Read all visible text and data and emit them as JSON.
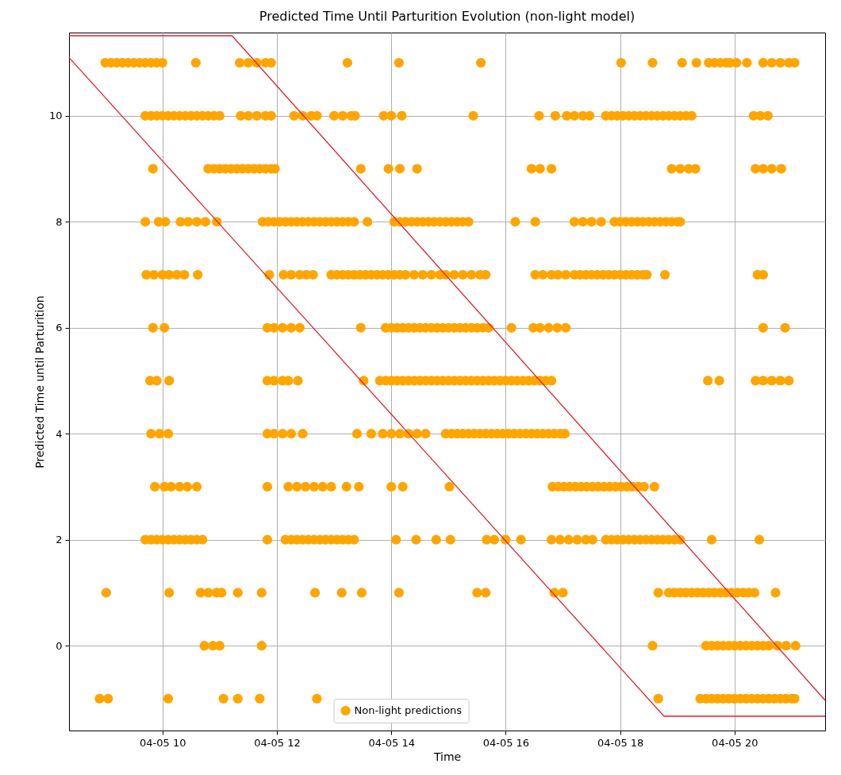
{
  "chart_data": {
    "type": "scatter",
    "title": "Predicted Time Until Parturition Evolution  (non-light model)",
    "xlabel": "Time",
    "ylabel": "Predicted Time until Parturition",
    "xlim": [
      "--04-05T08:22",
      "--04-05T21:35"
    ],
    "ylim": [
      -1.6,
      11.57
    ],
    "xticks": [
      {
        "value": "--04-05T10:00",
        "label": "04-05 10"
      },
      {
        "value": "--04-05T12:00",
        "label": "04-05 12"
      },
      {
        "value": "--04-05T14:00",
        "label": "04-05 14"
      },
      {
        "value": "--04-05T16:00",
        "label": "04-05 16"
      },
      {
        "value": "--04-05T18:00",
        "label": "04-05 18"
      },
      {
        "value": "--04-05T20:00",
        "label": "04-05 20"
      }
    ],
    "yticks": [
      0,
      2,
      4,
      6,
      8,
      10
    ],
    "grid": true,
    "legend": "bottom",
    "marker": "circle",
    "series": [
      {
        "name": "Non-light predictions",
        "color": "#ffa500",
        "x": [
          "--04-05T09:00",
          "--04-05T09:06",
          "--04-05T09:12",
          "--04-05T09:18",
          "--04-05T09:24",
          "--04-05T09:30",
          "--04-05T09:36",
          "--04-05T09:42",
          "--04-05T09:48",
          "--04-05T09:54",
          "--04-05T10:00",
          "--04-05T10:35",
          "--04-05T11:21",
          "--04-05T11:30",
          "--04-05T11:39",
          "--04-05T11:48",
          "--04-05T11:54",
          "--04-05T13:14",
          "--04-05T14:08",
          "--04-05T15:34",
          "--04-05T18:01",
          "--04-05T18:34",
          "--04-05T19:05",
          "--04-05T19:20",
          "--04-05T19:33",
          "--04-05T19:39",
          "--04-05T19:45",
          "--04-05T19:51",
          "--04-05T19:55",
          "--04-05T20:02",
          "--04-05T20:13",
          "--04-05T20:30",
          "--04-05T20:39",
          "--04-05T20:48",
          "--04-05T20:57",
          "--04-05T21:03",
          "--04-05T09:42",
          "--04-05T09:48",
          "--04-05T09:54",
          "--04-05T10:00",
          "--04-05T10:06",
          "--04-05T10:12",
          "--04-05T10:18",
          "--04-05T10:24",
          "--04-05T10:30",
          "--04-05T10:36",
          "--04-05T10:42",
          "--04-05T10:48",
          "--04-05T10:54",
          "--04-05T11:00",
          "--04-05T11:22",
          "--04-05T11:30",
          "--04-05T11:39",
          "--04-05T11:48",
          "--04-05T11:54",
          "--04-05T12:18",
          "--04-05T12:27",
          "--04-05T12:36",
          "--04-05T12:42",
          "--04-05T13:00",
          "--04-05T13:09",
          "--04-05T13:18",
          "--04-05T13:22",
          "--04-05T13:52",
          "--04-05T14:00",
          "--04-05T14:11",
          "--04-05T15:26",
          "--04-05T16:35",
          "--04-05T16:52",
          "--04-05T17:04",
          "--04-05T17:12",
          "--04-05T17:21",
          "--04-05T17:28",
          "--04-05T17:45",
          "--04-05T17:51",
          "--04-05T17:57",
          "--04-05T18:03",
          "--04-05T18:09",
          "--04-05T18:15",
          "--04-05T18:21",
          "--04-05T18:27",
          "--04-05T18:33",
          "--04-05T18:39",
          "--04-05T18:45",
          "--04-05T18:51",
          "--04-05T18:57",
          "--04-05T19:03",
          "--04-05T19:09",
          "--04-05T19:15",
          "--04-05T20:20",
          "--04-05T20:27",
          "--04-05T20:35",
          "--04-05T09:50",
          "--04-05T10:48",
          "--04-05T10:54",
          "--04-05T11:00",
          "--04-05T11:06",
          "--04-05T11:12",
          "--04-05T11:18",
          "--04-05T11:24",
          "--04-05T11:30",
          "--04-05T11:36",
          "--04-05T11:42",
          "--04-05T11:48",
          "--04-05T11:54",
          "--04-05T11:58",
          "--04-05T13:28",
          "--04-05T13:57",
          "--04-05T14:09",
          "--04-05T14:27",
          "--04-05T16:27",
          "--04-05T16:36",
          "--04-05T16:48",
          "--04-05T18:54",
          "--04-05T19:03",
          "--04-05T19:12",
          "--04-05T19:19",
          "--04-05T20:22",
          "--04-05T20:30",
          "--04-05T20:39",
          "--04-05T20:49",
          "--04-05T09:42",
          "--04-05T09:56",
          "--04-05T10:03",
          "--04-05T10:19",
          "--04-05T10:27",
          "--04-05T10:36",
          "--04-05T10:45",
          "--04-05T10:57",
          "--04-05T11:45",
          "--04-05T11:51",
          "--04-05T11:57",
          "--04-05T12:03",
          "--04-05T12:09",
          "--04-05T12:15",
          "--04-05T12:21",
          "--04-05T12:27",
          "--04-05T12:33",
          "--04-05T12:39",
          "--04-05T12:45",
          "--04-05T12:51",
          "--04-05T12:57",
          "--04-05T13:03",
          "--04-05T13:09",
          "--04-05T13:15",
          "--04-05T13:21",
          "--04-05T13:35",
          "--04-05T14:03",
          "--04-05T14:09",
          "--04-05T14:15",
          "--04-05T14:21",
          "--04-05T14:27",
          "--04-05T14:33",
          "--04-05T14:39",
          "--04-05T14:45",
          "--04-05T14:51",
          "--04-05T14:57",
          "--04-05T15:03",
          "--04-05T15:09",
          "--04-05T15:15",
          "--04-05T15:21",
          "--04-05T16:10",
          "--04-05T16:31",
          "--04-05T17:12",
          "--04-05T17:21",
          "--04-05T17:30",
          "--04-05T17:40",
          "--04-05T17:54",
          "--04-05T18:00",
          "--04-05T18:06",
          "--04-05T18:12",
          "--04-05T18:18",
          "--04-05T18:24",
          "--04-05T18:30",
          "--04-05T18:36",
          "--04-05T18:42",
          "--04-05T18:48",
          "--04-05T18:54",
          "--04-05T19:00",
          "--04-05T19:03",
          "--04-05T09:43",
          "--04-05T09:51",
          "--04-05T10:00",
          "--04-05T10:07",
          "--04-05T10:15",
          "--04-05T10:23",
          "--04-05T10:37",
          "--04-05T11:52",
          "--04-05T12:07",
          "--04-05T12:15",
          "--04-05T12:24",
          "--04-05T12:31",
          "--04-05T12:38",
          "--04-05T12:57",
          "--04-05T13:03",
          "--04-05T13:09",
          "--04-05T13:15",
          "--04-05T13:21",
          "--04-05T13:27",
          "--04-05T13:33",
          "--04-05T13:39",
          "--04-05T13:45",
          "--04-05T13:51",
          "--04-05T13:57",
          "--04-05T14:03",
          "--04-05T14:09",
          "--04-05T14:15",
          "--04-05T14:24",
          "--04-05T14:33",
          "--04-05T14:42",
          "--04-05T14:51",
          "--04-05T14:57",
          "--04-05T15:06",
          "--04-05T15:15",
          "--04-05T15:24",
          "--04-05T15:33",
          "--04-05T15:39",
          "--04-05T16:31",
          "--04-05T16:39",
          "--04-05T16:48",
          "--04-05T16:55",
          "--04-05T17:03",
          "--04-05T17:12",
          "--04-05T17:18",
          "--04-05T17:24",
          "--04-05T17:30",
          "--04-05T17:36",
          "--04-05T17:42",
          "--04-05T17:48",
          "--04-05T17:54",
          "--04-05T18:00",
          "--04-05T18:06",
          "--04-05T18:12",
          "--04-05T18:18",
          "--04-05T18:24",
          "--04-05T18:28",
          "--04-05T18:47",
          "--04-05T20:24",
          "--04-05T20:30",
          "--04-05T09:50",
          "--04-05T10:02",
          "--04-05T11:50",
          "--04-05T11:57",
          "--04-05T12:06",
          "--04-05T12:15",
          "--04-05T12:24",
          "--04-05T13:28",
          "--04-05T13:54",
          "--04-05T14:00",
          "--04-05T14:06",
          "--04-05T14:12",
          "--04-05T14:18",
          "--04-05T14:24",
          "--04-05T14:30",
          "--04-05T14:36",
          "--04-05T14:42",
          "--04-05T14:48",
          "--04-05T14:54",
          "--04-05T15:00",
          "--04-05T15:06",
          "--04-05T15:12",
          "--04-05T15:18",
          "--04-05T15:24",
          "--04-05T15:30",
          "--04-05T15:36",
          "--04-05T15:42",
          "--04-05T16:06",
          "--04-05T16:29",
          "--04-05T16:36",
          "--04-05T16:45",
          "--04-05T16:54",
          "--04-05T17:03",
          "--04-05T20:30",
          "--04-05T20:53",
          "--04-05T09:47",
          "--04-05T09:54",
          "--04-05T10:07",
          "--04-05T11:50",
          "--04-05T11:57",
          "--04-05T12:06",
          "--04-05T12:12",
          "--04-05T12:22",
          "--04-05T13:31",
          "--04-05T13:48",
          "--04-05T13:54",
          "--04-05T14:00",
          "--04-05T14:06",
          "--04-05T14:12",
          "--04-05T14:18",
          "--04-05T14:24",
          "--04-05T14:30",
          "--04-05T14:36",
          "--04-05T14:42",
          "--04-05T14:48",
          "--04-05T14:54",
          "--04-05T15:00",
          "--04-05T15:06",
          "--04-05T15:12",
          "--04-05T15:18",
          "--04-05T15:24",
          "--04-05T15:30",
          "--04-05T15:36",
          "--04-05T15:42",
          "--04-05T15:48",
          "--04-05T15:54",
          "--04-05T16:00",
          "--04-05T16:06",
          "--04-05T16:12",
          "--04-05T16:18",
          "--04-05T16:24",
          "--04-05T16:30",
          "--04-05T16:36",
          "--04-05T16:42",
          "--04-05T16:48",
          "--04-05T19:32",
          "--04-05T19:44",
          "--04-05T20:22",
          "--04-05T20:30",
          "--04-05T20:39",
          "--04-05T20:48",
          "--04-05T20:57",
          "--04-05T09:48",
          "--04-05T09:57",
          "--04-05T10:06",
          "--04-05T11:50",
          "--04-05T11:57",
          "--04-05T12:06",
          "--04-05T12:15",
          "--04-05T12:27",
          "--04-05T13:24",
          "--04-05T13:39",
          "--04-05T13:51",
          "--04-05T14:00",
          "--04-05T14:09",
          "--04-05T14:18",
          "--04-05T14:27",
          "--04-05T14:36",
          "--04-05T14:57",
          "--04-05T15:03",
          "--04-05T15:09",
          "--04-05T15:15",
          "--04-05T15:21",
          "--04-05T15:27",
          "--04-05T15:33",
          "--04-05T15:39",
          "--04-05T15:45",
          "--04-05T15:51",
          "--04-05T15:57",
          "--04-05T16:03",
          "--04-05T16:09",
          "--04-05T16:15",
          "--04-05T16:21",
          "--04-05T16:27",
          "--04-05T16:33",
          "--04-05T16:39",
          "--04-05T16:45",
          "--04-05T16:51",
          "--04-05T16:57",
          "--04-05T17:02",
          "--04-05T09:52",
          "--04-05T10:02",
          "--04-05T10:09",
          "--04-05T10:18",
          "--04-05T10:26",
          "--04-05T10:36",
          "--04-05T11:50",
          "--04-05T12:12",
          "--04-05T12:21",
          "--04-05T12:30",
          "--04-05T12:39",
          "--04-05T12:48",
          "--04-05T12:57",
          "--04-05T13:13",
          "--04-05T13:26",
          "--04-05T14:00",
          "--04-05T14:12",
          "--04-05T15:01",
          "--04-05T16:49",
          "--04-05T16:55",
          "--04-05T17:01",
          "--04-05T17:07",
          "--04-05T17:13",
          "--04-05T17:19",
          "--04-05T17:25",
          "--04-05T17:31",
          "--04-05T17:37",
          "--04-05T17:43",
          "--04-05T17:49",
          "--04-05T17:55",
          "--04-05T18:01",
          "--04-05T18:07",
          "--04-05T18:13",
          "--04-05T18:19",
          "--04-05T18:25",
          "--04-05T18:36",
          "--04-05T09:42",
          "--04-05T09:48",
          "--04-05T09:54",
          "--04-05T10:00",
          "--04-05T10:06",
          "--04-05T10:12",
          "--04-05T10:18",
          "--04-05T10:24",
          "--04-05T10:30",
          "--04-05T10:36",
          "--04-05T10:42",
          "--04-05T11:50",
          "--04-05T12:09",
          "--04-05T12:15",
          "--04-05T12:21",
          "--04-05T12:27",
          "--04-05T12:33",
          "--04-05T12:39",
          "--04-05T12:45",
          "--04-05T12:51",
          "--04-05T12:57",
          "--04-05T13:03",
          "--04-05T13:09",
          "--04-05T13:15",
          "--04-05T13:21",
          "--04-05T14:05",
          "--04-05T14:26",
          "--04-05T14:47",
          "--04-05T15:02",
          "--04-05T15:40",
          "--04-05T15:48",
          "--04-05T16:00",
          "--04-05T16:16",
          "--04-05T16:48",
          "--04-05T16:57",
          "--04-05T17:06",
          "--04-05T17:15",
          "--04-05T17:24",
          "--04-05T17:31",
          "--04-05T17:45",
          "--04-05T17:51",
          "--04-05T17:57",
          "--04-05T18:03",
          "--04-05T18:09",
          "--04-05T18:15",
          "--04-05T18:21",
          "--04-05T18:27",
          "--04-05T18:33",
          "--04-05T18:39",
          "--04-05T18:45",
          "--04-05T18:51",
          "--04-05T18:57",
          "--04-05T19:03",
          "--04-05T19:36",
          "--04-05T20:26",
          "--04-05T09:01",
          "--04-05T10:07",
          "--04-05T10:40",
          "--04-05T10:48",
          "--04-05T10:57",
          "--04-05T11:02",
          "--04-05T11:19",
          "--04-05T11:44",
          "--04-05T12:40",
          "--04-05T13:08",
          "--04-05T13:29",
          "--04-05T14:08",
          "--04-05T15:30",
          "--04-05T15:39",
          "--04-05T16:51",
          "--04-05T17:00",
          "--04-05T18:40",
          "--04-05T18:51",
          "--04-05T18:57",
          "--04-05T19:03",
          "--04-05T19:09",
          "--04-05T19:15",
          "--04-05T19:21",
          "--04-05T19:27",
          "--04-05T19:33",
          "--04-05T19:39",
          "--04-05T19:45",
          "--04-05T19:51",
          "--04-05T19:57",
          "--04-05T20:03",
          "--04-05T20:09",
          "--04-05T20:15",
          "--04-05T20:21",
          "--04-05T20:43",
          "--04-05T10:44",
          "--04-05T10:53",
          "--04-05T11:00",
          "--04-05T11:44",
          "--04-05T18:34",
          "--04-05T19:30",
          "--04-05T19:36",
          "--04-05T19:42",
          "--04-05T19:48",
          "--04-05T19:54",
          "--04-05T20:00",
          "--04-05T20:06",
          "--04-05T20:12",
          "--04-05T20:18",
          "--04-05T20:24",
          "--04-05T20:30",
          "--04-05T20:36",
          "--04-05T20:45",
          "--04-05T20:54",
          "--04-05T21:04",
          "--04-05T08:54",
          "--04-05T09:03",
          "--04-05T10:06",
          "--04-05T11:04",
          "--04-05T11:19",
          "--04-05T11:42",
          "--04-05T12:42",
          "--04-05T18:40",
          "--04-05T19:24",
          "--04-05T19:30",
          "--04-05T19:36",
          "--04-05T19:42",
          "--04-05T19:48",
          "--04-05T19:54",
          "--04-05T20:00",
          "--04-05T20:06",
          "--04-05T20:12",
          "--04-05T20:18",
          "--04-05T20:24",
          "--04-05T20:30",
          "--04-05T20:36",
          "--04-05T20:42",
          "--04-05T20:48",
          "--04-05T20:54",
          "--04-05T21:00",
          "--04-05T21:03"
        ],
        "values": [
          11,
          11,
          11,
          11,
          11,
          11,
          11,
          11,
          11,
          11,
          11,
          11,
          11,
          11,
          11,
          11,
          11,
          11,
          11,
          11,
          11,
          11,
          11,
          11,
          11,
          11,
          11,
          11,
          11,
          11,
          11,
          11,
          11,
          11,
          11,
          11,
          10,
          10,
          10,
          10,
          10,
          10,
          10,
          10,
          10,
          10,
          10,
          10,
          10,
          10,
          10,
          10,
          10,
          10,
          10,
          10,
          10,
          10,
          10,
          10,
          10,
          10,
          10,
          10,
          10,
          10,
          10,
          10,
          10,
          10,
          10,
          10,
          10,
          10,
          10,
          10,
          10,
          10,
          10,
          10,
          10,
          10,
          10,
          10,
          10,
          10,
          10,
          10,
          10,
          10,
          10,
          10,
          9,
          9,
          9,
          9,
          9,
          9,
          9,
          9,
          9,
          9,
          9,
          9,
          9,
          9,
          9,
          9,
          9,
          9,
          9,
          9,
          9,
          9,
          9,
          9,
          9,
          9,
          9,
          9,
          9,
          8,
          8,
          8,
          8,
          8,
          8,
          8,
          8,
          8,
          8,
          8,
          8,
          8,
          8,
          8,
          8,
          8,
          8,
          8,
          8,
          8,
          8,
          8,
          8,
          8,
          8,
          8,
          8,
          8,
          8,
          8,
          8,
          8,
          8,
          8,
          8,
          8,
          8,
          8,
          8,
          8,
          8,
          8,
          8,
          8,
          8,
          8,
          8,
          8,
          8,
          8,
          8,
          8,
          8,
          8,
          8,
          8,
          8,
          8,
          7,
          7,
          7,
          7,
          7,
          7,
          7,
          7,
          7,
          7,
          7,
          7,
          7,
          7,
          7,
          7,
          7,
          7,
          7,
          7,
          7,
          7,
          7,
          7,
          7,
          7,
          7,
          7,
          7,
          7,
          7,
          7,
          7,
          7,
          7,
          7,
          7,
          7,
          7,
          7,
          7,
          7,
          7,
          7,
          7,
          7,
          7,
          7,
          7,
          7,
          7,
          7,
          7,
          7,
          7,
          7,
          7,
          7,
          7,
          6,
          6,
          6,
          6,
          6,
          6,
          6,
          6,
          6,
          6,
          6,
          6,
          6,
          6,
          6,
          6,
          6,
          6,
          6,
          6,
          6,
          6,
          6,
          6,
          6,
          6,
          6,
          6,
          6,
          6,
          6,
          6,
          6,
          6,
          6,
          5,
          5,
          5,
          5,
          5,
          5,
          5,
          5,
          5,
          5,
          5,
          5,
          5,
          5,
          5,
          5,
          5,
          5,
          5,
          5,
          5,
          5,
          5,
          5,
          5,
          5,
          5,
          5,
          5,
          5,
          5,
          5,
          5,
          5,
          5,
          5,
          5,
          5,
          5,
          5,
          5,
          5,
          5,
          5,
          5,
          5,
          5,
          4,
          4,
          4,
          4,
          4,
          4,
          4,
          4,
          4,
          4,
          4,
          4,
          4,
          4,
          4,
          4,
          4,
          4,
          4,
          4,
          4,
          4,
          4,
          4,
          4,
          4,
          4,
          4,
          4,
          4,
          4,
          4,
          4,
          4,
          4,
          4,
          4,
          4,
          3,
          3,
          3,
          3,
          3,
          3,
          3,
          3,
          3,
          3,
          3,
          3,
          3,
          3,
          3,
          3,
          3,
          3,
          3,
          3,
          3,
          3,
          3,
          3,
          3,
          3,
          3,
          3,
          3,
          3,
          3,
          3,
          3,
          3,
          3,
          3,
          2,
          2,
          2,
          2,
          2,
          2,
          2,
          2,
          2,
          2,
          2,
          2,
          2,
          2,
          2,
          2,
          2,
          2,
          2,
          2,
          2,
          2,
          2,
          2,
          2,
          2,
          2,
          2,
          2,
          2,
          2,
          2,
          2,
          2,
          2,
          2,
          2,
          2,
          2,
          2,
          2,
          2,
          2,
          2,
          2,
          2,
          2,
          2,
          2,
          2,
          2,
          2,
          2,
          2,
          2,
          1,
          1,
          1,
          1,
          1,
          1,
          1,
          1,
          1,
          1,
          1,
          1,
          1,
          1,
          1,
          1,
          1,
          1,
          1,
          1,
          1,
          1,
          1,
          1,
          1,
          1,
          1,
          1,
          1,
          1,
          1,
          1,
          1,
          1,
          0,
          0,
          0,
          0,
          0,
          0,
          0,
          0,
          0,
          0,
          0,
          0,
          0,
          0,
          0,
          0,
          0,
          0,
          0,
          0,
          -1,
          -1,
          -1,
          -1,
          -1,
          -1,
          -1,
          -1,
          -1,
          -1,
          -1,
          -1,
          -1,
          -1,
          -1,
          -1,
          -1,
          -1,
          -1,
          -1,
          -1,
          -1,
          -1,
          -1,
          -1,
          -1
        ]
      },
      {
        "type": "line",
        "color": "#e0202a",
        "marker": "none",
        "x": [
          "--04-05T08:22",
          "--04-05T11:13",
          "--04-05T21:35"
        ],
        "values": [
          11.51,
          11.51,
          -1.03
        ]
      },
      {
        "type": "line",
        "color": "#e0202a",
        "marker": "none",
        "x": [
          "--04-05T21:35",
          "--04-05T18:46",
          "--04-05T08:22"
        ],
        "values": [
          -1.33,
          -1.33,
          11.1
        ]
      }
    ]
  }
}
